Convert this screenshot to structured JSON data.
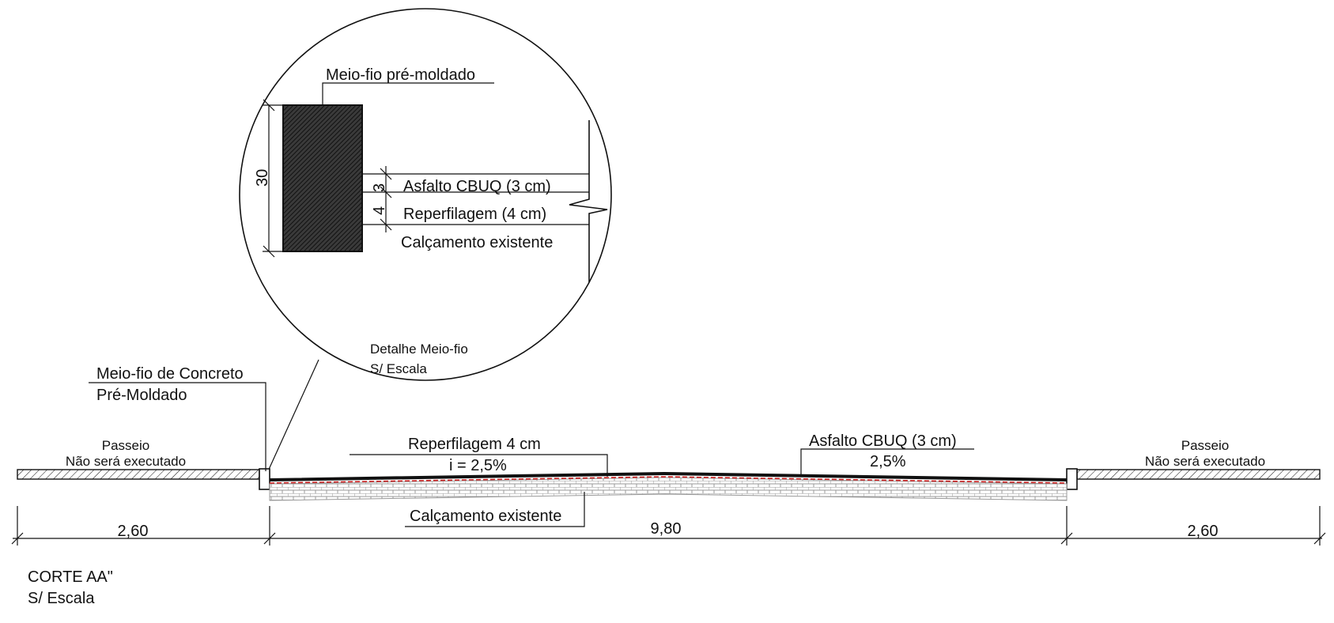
{
  "detail": {
    "curb_label": "Meio-fio pré-moldado",
    "dim_height": "30",
    "dim_asphalt": "3",
    "dim_reprofile": "4",
    "asphalt_label": "Asfalto CBUQ (3 cm)",
    "reprofile_label": "Reperfilagem (4 cm)",
    "existing_label": "Calçamento existente",
    "title": "Detalhe Meio-fio",
    "scale": "S/ Escala"
  },
  "section": {
    "curb_label_line1": "Meio-fio de Concreto",
    "curb_label_line2": "Pré-Moldado",
    "sidewalk_left_line1": "Passeio",
    "sidewalk_left_line2": "Não será executado",
    "sidewalk_right_line1": "Passeio",
    "sidewalk_right_line2": "Não será executado",
    "reprofile_label": "Reperfilagem 4 cm",
    "slope_left": "i = 2,5%",
    "asphalt_label": "Asfalto CBUQ (3 cm)",
    "slope_right": "2,5%",
    "existing_label": "Calçamento existente",
    "dim_left": "2,60",
    "dim_center": "9,80",
    "dim_right": "2,60",
    "title": "CORTE AA\"",
    "scale": "S/ Escala"
  },
  "colors": {
    "line": "#111111",
    "red_layer": "#cc1f1f",
    "paving": "#9a9a9a"
  }
}
